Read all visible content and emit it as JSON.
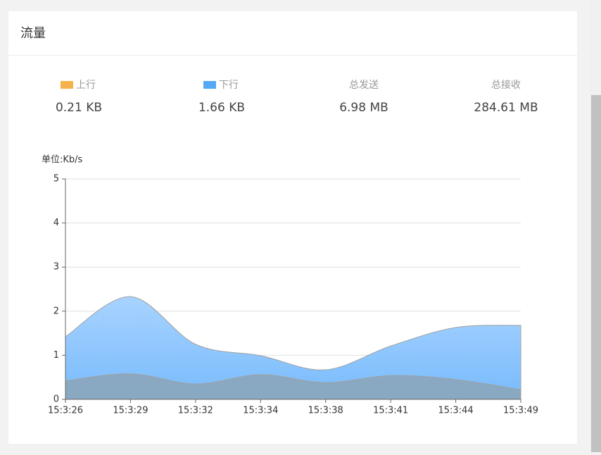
{
  "panel": {
    "title": "流量"
  },
  "stats": [
    {
      "value": "0.21 KB"
    },
    {
      "value": "1.66 KB"
    },
    {
      "label": "总发送",
      "value": "6.98 MB"
    },
    {
      "label": "总接收",
      "value": "284.61 MB"
    }
  ],
  "chart_data": {
    "type": "area",
    "y_label": "单位:Kb/s",
    "categories": [
      "15:3:26",
      "15:3:29",
      "15:3:32",
      "15:3:34",
      "15:3:38",
      "15:3:41",
      "15:3:44",
      "15:3:49"
    ],
    "series": [
      {
        "name": "上行",
        "color": "#f5b24c",
        "fill": "#8aa6bf",
        "values": [
          0.42,
          0.58,
          0.35,
          0.56,
          0.38,
          0.54,
          0.45,
          0.22
        ]
      },
      {
        "name": "下行",
        "color": "#55a8f5",
        "fill": "#8fc6fd",
        "values": [
          1.42,
          2.33,
          1.25,
          0.99,
          0.67,
          1.21,
          1.63,
          1.68
        ]
      }
    ],
    "ylim": [
      0,
      5
    ],
    "yticks": [
      0,
      1,
      2,
      3,
      4,
      5
    ],
    "grid": true
  }
}
